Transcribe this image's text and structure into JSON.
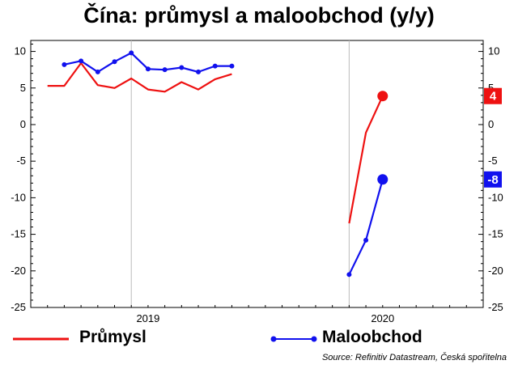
{
  "chart_data": {
    "type": "line",
    "title": "Čína: průmysl a maloobchod (y/y)",
    "source": "Source: Refinitiv Datastream, Česká spořitelna",
    "ylim": [
      -25,
      11.5
    ],
    "yticks": [
      10,
      5,
      0,
      -5,
      -10,
      -15,
      -20,
      -25
    ],
    "xlim": [
      "2018-06",
      "2020-09"
    ],
    "x_tick_labels": [
      {
        "label": "2019",
        "date": "2019-01"
      },
      {
        "label": "2020",
        "date": "2020-03"
      }
    ],
    "gridlines": {
      "vertical": [
        "2018-12",
        "2020-01"
      ]
    },
    "legend_position": "bottom",
    "series": [
      {
        "name": "Průmysl",
        "color": "#ee1111",
        "marker": "none",
        "points": [
          {
            "x": "2018-07",
            "y": 5.3
          },
          {
            "x": "2018-08",
            "y": 5.3
          },
          {
            "x": "2018-09",
            "y": 8.4
          },
          {
            "x": "2018-10",
            "y": 5.4
          },
          {
            "x": "2018-11",
            "y": 5.0
          },
          {
            "x": "2018-12",
            "y": 6.3
          },
          {
            "x": "2019-01",
            "y": 4.8
          },
          {
            "x": "2019-02",
            "y": 4.5
          },
          {
            "x": "2019-03",
            "y": 5.8
          },
          {
            "x": "2019-04",
            "y": 4.8
          },
          {
            "x": "2019-05",
            "y": 6.2
          },
          {
            "x": "2019-06",
            "y": 6.9
          },
          {
            "x": "2020-01",
            "y": -13.5
          },
          {
            "x": "2020-02",
            "y": -1.1
          },
          {
            "x": "2020-03",
            "y": 3.9
          }
        ],
        "last_value_label": "4"
      },
      {
        "name": "Maloobchod",
        "color": "#1111ee",
        "marker": "circle",
        "points": [
          {
            "x": "2018-08",
            "y": 8.2
          },
          {
            "x": "2018-09",
            "y": 8.7
          },
          {
            "x": "2018-10",
            "y": 7.2
          },
          {
            "x": "2018-11",
            "y": 8.6
          },
          {
            "x": "2018-12",
            "y": 9.8
          },
          {
            "x": "2019-01",
            "y": 7.6
          },
          {
            "x": "2019-02",
            "y": 7.5
          },
          {
            "x": "2019-03",
            "y": 7.8
          },
          {
            "x": "2019-04",
            "y": 7.2
          },
          {
            "x": "2019-05",
            "y": 8.0
          },
          {
            "x": "2019-06",
            "y": 8.0
          },
          {
            "x": "2020-01",
            "y": -20.5
          },
          {
            "x": "2020-02",
            "y": -15.8
          },
          {
            "x": "2020-03",
            "y": -7.5
          }
        ],
        "last_value_label": "-8"
      }
    ]
  }
}
